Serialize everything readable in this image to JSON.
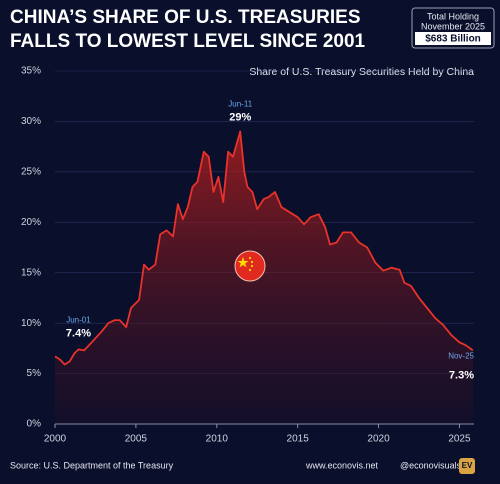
{
  "chart_data": {
    "type": "area",
    "title_lines": [
      "CHINA’S SHARE OF U.S. TREASURIES",
      "FALLS TO LOWEST LEVEL SINCE 2001"
    ],
    "subtitle": "Share of U.S. Treasury Securities Held by China",
    "holding_box": {
      "label": "Total Holding",
      "date": "November 2025",
      "value": "$683 Billion"
    },
    "source": "Source: U.S. Department of the Treasury",
    "credits": [
      "www.econovis.net",
      "@econovisuals",
      "EV"
    ],
    "color": "#e8322a",
    "x": [
      2000.0,
      2000.3,
      2000.6,
      2000.9,
      2001.2,
      2001.45,
      2001.8,
      2002.1,
      2002.5,
      2002.9,
      2003.3,
      2003.7,
      2004.0,
      2004.4,
      2004.7,
      2005.2,
      2005.5,
      2005.8,
      2006.2,
      2006.5,
      2006.9,
      2007.3,
      2007.6,
      2007.9,
      2008.2,
      2008.5,
      2008.8,
      2009.2,
      2009.5,
      2009.8,
      2010.1,
      2010.4,
      2010.7,
      2011.0,
      2011.45,
      2011.7,
      2011.9,
      2012.2,
      2012.5,
      2012.9,
      2013.2,
      2013.6,
      2014.0,
      2014.5,
      2015.0,
      2015.4,
      2015.8,
      2016.3,
      2016.7,
      2017.0,
      2017.4,
      2017.8,
      2018.3,
      2018.8,
      2019.3,
      2019.8,
      2020.3,
      2020.8,
      2021.3,
      2021.6,
      2022.0,
      2022.5,
      2023.0,
      2023.5,
      2024.0,
      2024.5,
      2025.0,
      2025.4,
      2025.83
    ],
    "values": [
      6.7,
      6.4,
      5.9,
      6.2,
      7.0,
      7.4,
      7.3,
      7.8,
      8.5,
      9.2,
      10.0,
      10.3,
      10.3,
      9.6,
      11.5,
      12.3,
      15.8,
      15.3,
      15.8,
      18.8,
      19.2,
      18.6,
      21.8,
      20.3,
      21.5,
      23.5,
      24.0,
      27.0,
      26.5,
      23.0,
      24.5,
      22.0,
      27.0,
      26.5,
      29.0,
      25.0,
      23.5,
      23.0,
      21.3,
      22.3,
      22.5,
      23.0,
      21.5,
      21.0,
      20.5,
      19.8,
      20.5,
      20.8,
      19.5,
      17.8,
      18.0,
      19.0,
      19.0,
      18.0,
      17.5,
      16.0,
      15.2,
      15.5,
      15.3,
      14.0,
      13.7,
      12.5,
      11.5,
      10.5,
      9.8,
      8.8,
      8.1,
      7.8,
      7.3
    ],
    "annotations": [
      {
        "date": "Jun-01",
        "x": 2001.45,
        "value": 7.4,
        "label": "7.4%"
      },
      {
        "date": "Jun-11",
        "x": 2011.45,
        "value": 29,
        "label": "29%"
      },
      {
        "date": "Nov-25",
        "x": 2025.83,
        "value": 7.3,
        "label": "7.3%"
      }
    ],
    "xlim": [
      2000,
      2025.9
    ],
    "xticks": [
      2000,
      2005,
      2010,
      2015,
      2020,
      2025
    ],
    "ylim": [
      0,
      35
    ],
    "yticks": [
      {
        "value": 0,
        "label": "0%"
      },
      {
        "value": 5,
        "label": "5%"
      },
      {
        "value": 10,
        "label": "10%"
      },
      {
        "value": 15,
        "label": "15%"
      },
      {
        "value": 20,
        "label": "20%"
      },
      {
        "value": 25,
        "label": "25%"
      },
      {
        "value": 30,
        "label": "30%"
      },
      {
        "value": 35,
        "label": "35%"
      }
    ],
    "grid": true
  }
}
